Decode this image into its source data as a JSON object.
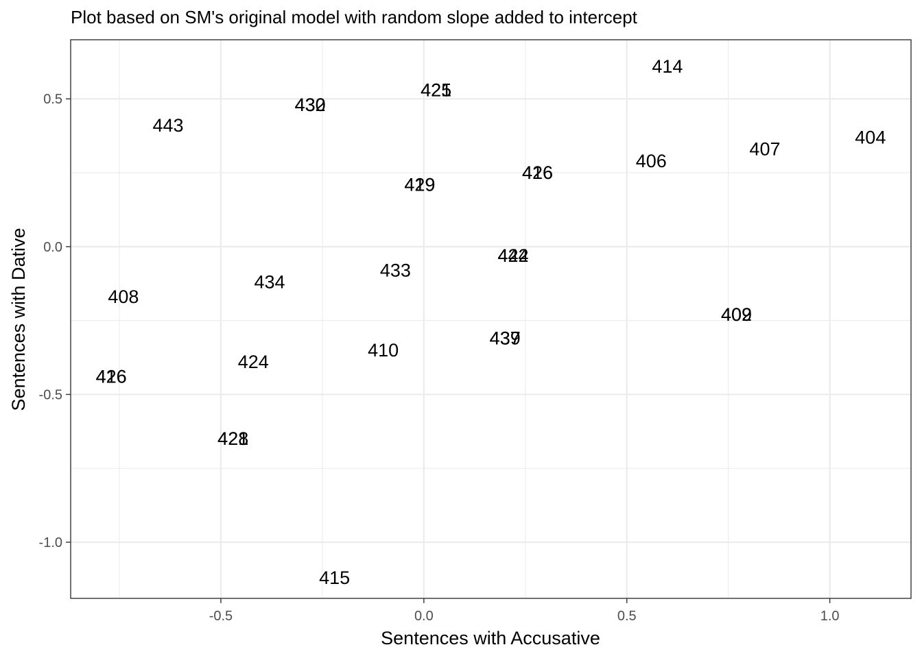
{
  "chart_data": {
    "type": "scatter",
    "title": "Plot based on SM's original model with random slope added to intercept",
    "xlabel": "Sentences with Accusative",
    "ylabel": "Sentences with Dative",
    "xlim": [
      -0.87,
      1.2
    ],
    "ylim": [
      -1.19,
      0.7
    ],
    "x_ticks": [
      -0.5,
      0.0,
      0.5,
      1.0
    ],
    "x_tick_labels": [
      "-0.5",
      "0.0",
      "0.5",
      "1.0"
    ],
    "y_ticks": [
      -1.0,
      -0.5,
      0.0,
      0.5
    ],
    "y_tick_labels": [
      "-1.0",
      "-0.5",
      "0.0",
      "0.5"
    ],
    "grid": true,
    "points": [
      {
        "label": "414",
        "x": 0.6,
        "y": 0.61
      },
      {
        "label": "425",
        "x": 0.03,
        "y": 0.53
      },
      {
        "label": "421",
        "x": 0.03,
        "y": 0.53
      },
      {
        "label": "430",
        "x": -0.28,
        "y": 0.48
      },
      {
        "label": "432",
        "x": -0.28,
        "y": 0.48
      },
      {
        "label": "443",
        "x": -0.63,
        "y": 0.41
      },
      {
        "label": "404",
        "x": 1.1,
        "y": 0.37
      },
      {
        "label": "407",
        "x": 0.84,
        "y": 0.33
      },
      {
        "label": "406",
        "x": 0.56,
        "y": 0.29
      },
      {
        "label": "416",
        "x": 0.28,
        "y": 0.25
      },
      {
        "label": "426",
        "x": 0.28,
        "y": 0.25
      },
      {
        "label": "419",
        "x": -0.01,
        "y": 0.21
      },
      {
        "label": "429",
        "x": -0.01,
        "y": 0.21
      },
      {
        "label": "422",
        "x": 0.22,
        "y": -0.03
      },
      {
        "label": "444",
        "x": 0.22,
        "y": -0.03
      },
      {
        "label": "433",
        "x": -0.07,
        "y": -0.08
      },
      {
        "label": "434",
        "x": -0.38,
        "y": -0.12
      },
      {
        "label": "408",
        "x": -0.74,
        "y": -0.17
      },
      {
        "label": "409",
        "x": 0.77,
        "y": -0.23
      },
      {
        "label": "402",
        "x": 0.77,
        "y": -0.23
      },
      {
        "label": "437",
        "x": 0.2,
        "y": -0.31
      },
      {
        "label": "439",
        "x": 0.2,
        "y": -0.31
      },
      {
        "label": "410",
        "x": -0.1,
        "y": -0.35
      },
      {
        "label": "424",
        "x": -0.42,
        "y": -0.39
      },
      {
        "label": "416",
        "x": -0.77,
        "y": -0.44
      },
      {
        "label": "426",
        "x": -0.77,
        "y": -0.44
      },
      {
        "label": "421",
        "x": -0.47,
        "y": -0.65
      },
      {
        "label": "428",
        "x": -0.47,
        "y": -0.65
      },
      {
        "label": "415",
        "x": -0.22,
        "y": -1.12
      }
    ]
  }
}
